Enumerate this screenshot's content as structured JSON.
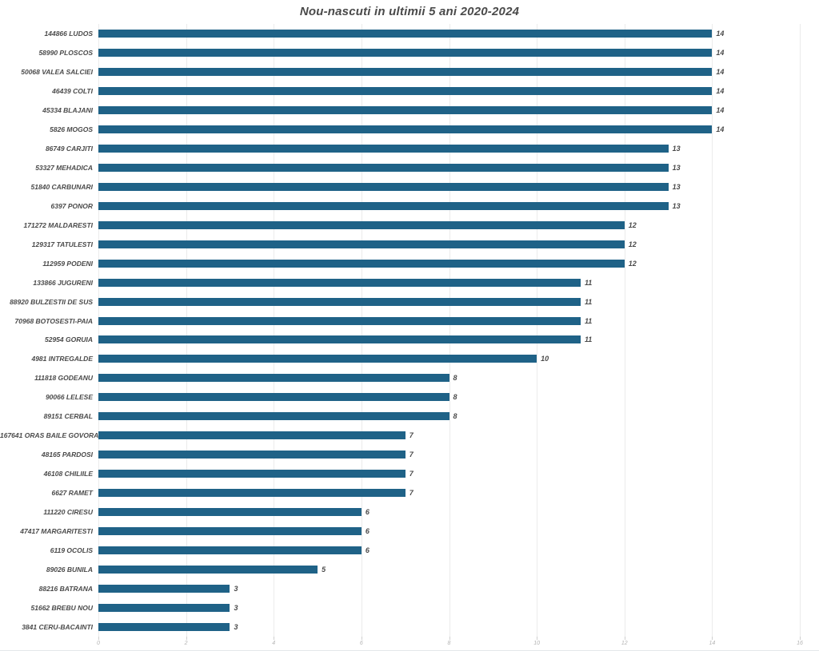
{
  "page": {
    "title": "Nou-nascuti in ultimii 5 ani 2020-2024"
  },
  "chart_data": {
    "type": "bar",
    "orientation": "horizontal",
    "title": "Nou-nascuti in ultimii 5 ani 2020-2024",
    "categories": [
      "144866 LUDOS",
      "58990 PLOSCOS",
      "50068 VALEA SALCIEI",
      "46439 COLTI",
      "45334 BLAJANI",
      "5826 MOGOS",
      "86749 CARJITI",
      "53327 MEHADICA",
      "51840 CARBUNARI",
      "6397 PONOR",
      "171272 MALDARESTI",
      "129317 TATULESTI",
      "112959 PODENI",
      "133866 JUGURENI",
      "88920 BULZESTII DE SUS",
      "70968 BOTOSESTI-PAIA",
      "52954 GORUIA",
      "4981 INTREGALDE",
      "111818 GODEANU",
      "90066 LELESE",
      "89151 CERBAL",
      "167641 ORAS BAILE GOVORA",
      "48165 PARDOSI",
      "46108 CHILIILE",
      "6627 RAMET",
      "111220 CIRESU",
      "47417 MARGARITESTI",
      "6119 OCOLIS",
      "89026 BUNILA",
      "88216 BATRANA",
      "51662 BREBU NOU",
      "3841 CERU-BACAINTI"
    ],
    "values": [
      14,
      14,
      14,
      14,
      14,
      14,
      13,
      13,
      13,
      13,
      12,
      12,
      12,
      11,
      11,
      11,
      11,
      10,
      8,
      8,
      8,
      7,
      7,
      7,
      7,
      6,
      6,
      6,
      5,
      3,
      3,
      3
    ],
    "xlabel": "",
    "ylabel": "",
    "xlim": [
      0,
      16
    ],
    "xticks": [
      0,
      2,
      4,
      6,
      8,
      10,
      12,
      14,
      16
    ],
    "grid": true,
    "legend": "none",
    "bar_color": "#1f6287",
    "label_color": "#4a4a4a",
    "tick_label_color": "#b3b3b3",
    "gridline_color": "#ebebeb",
    "title_color": "#4a4a4a"
  }
}
